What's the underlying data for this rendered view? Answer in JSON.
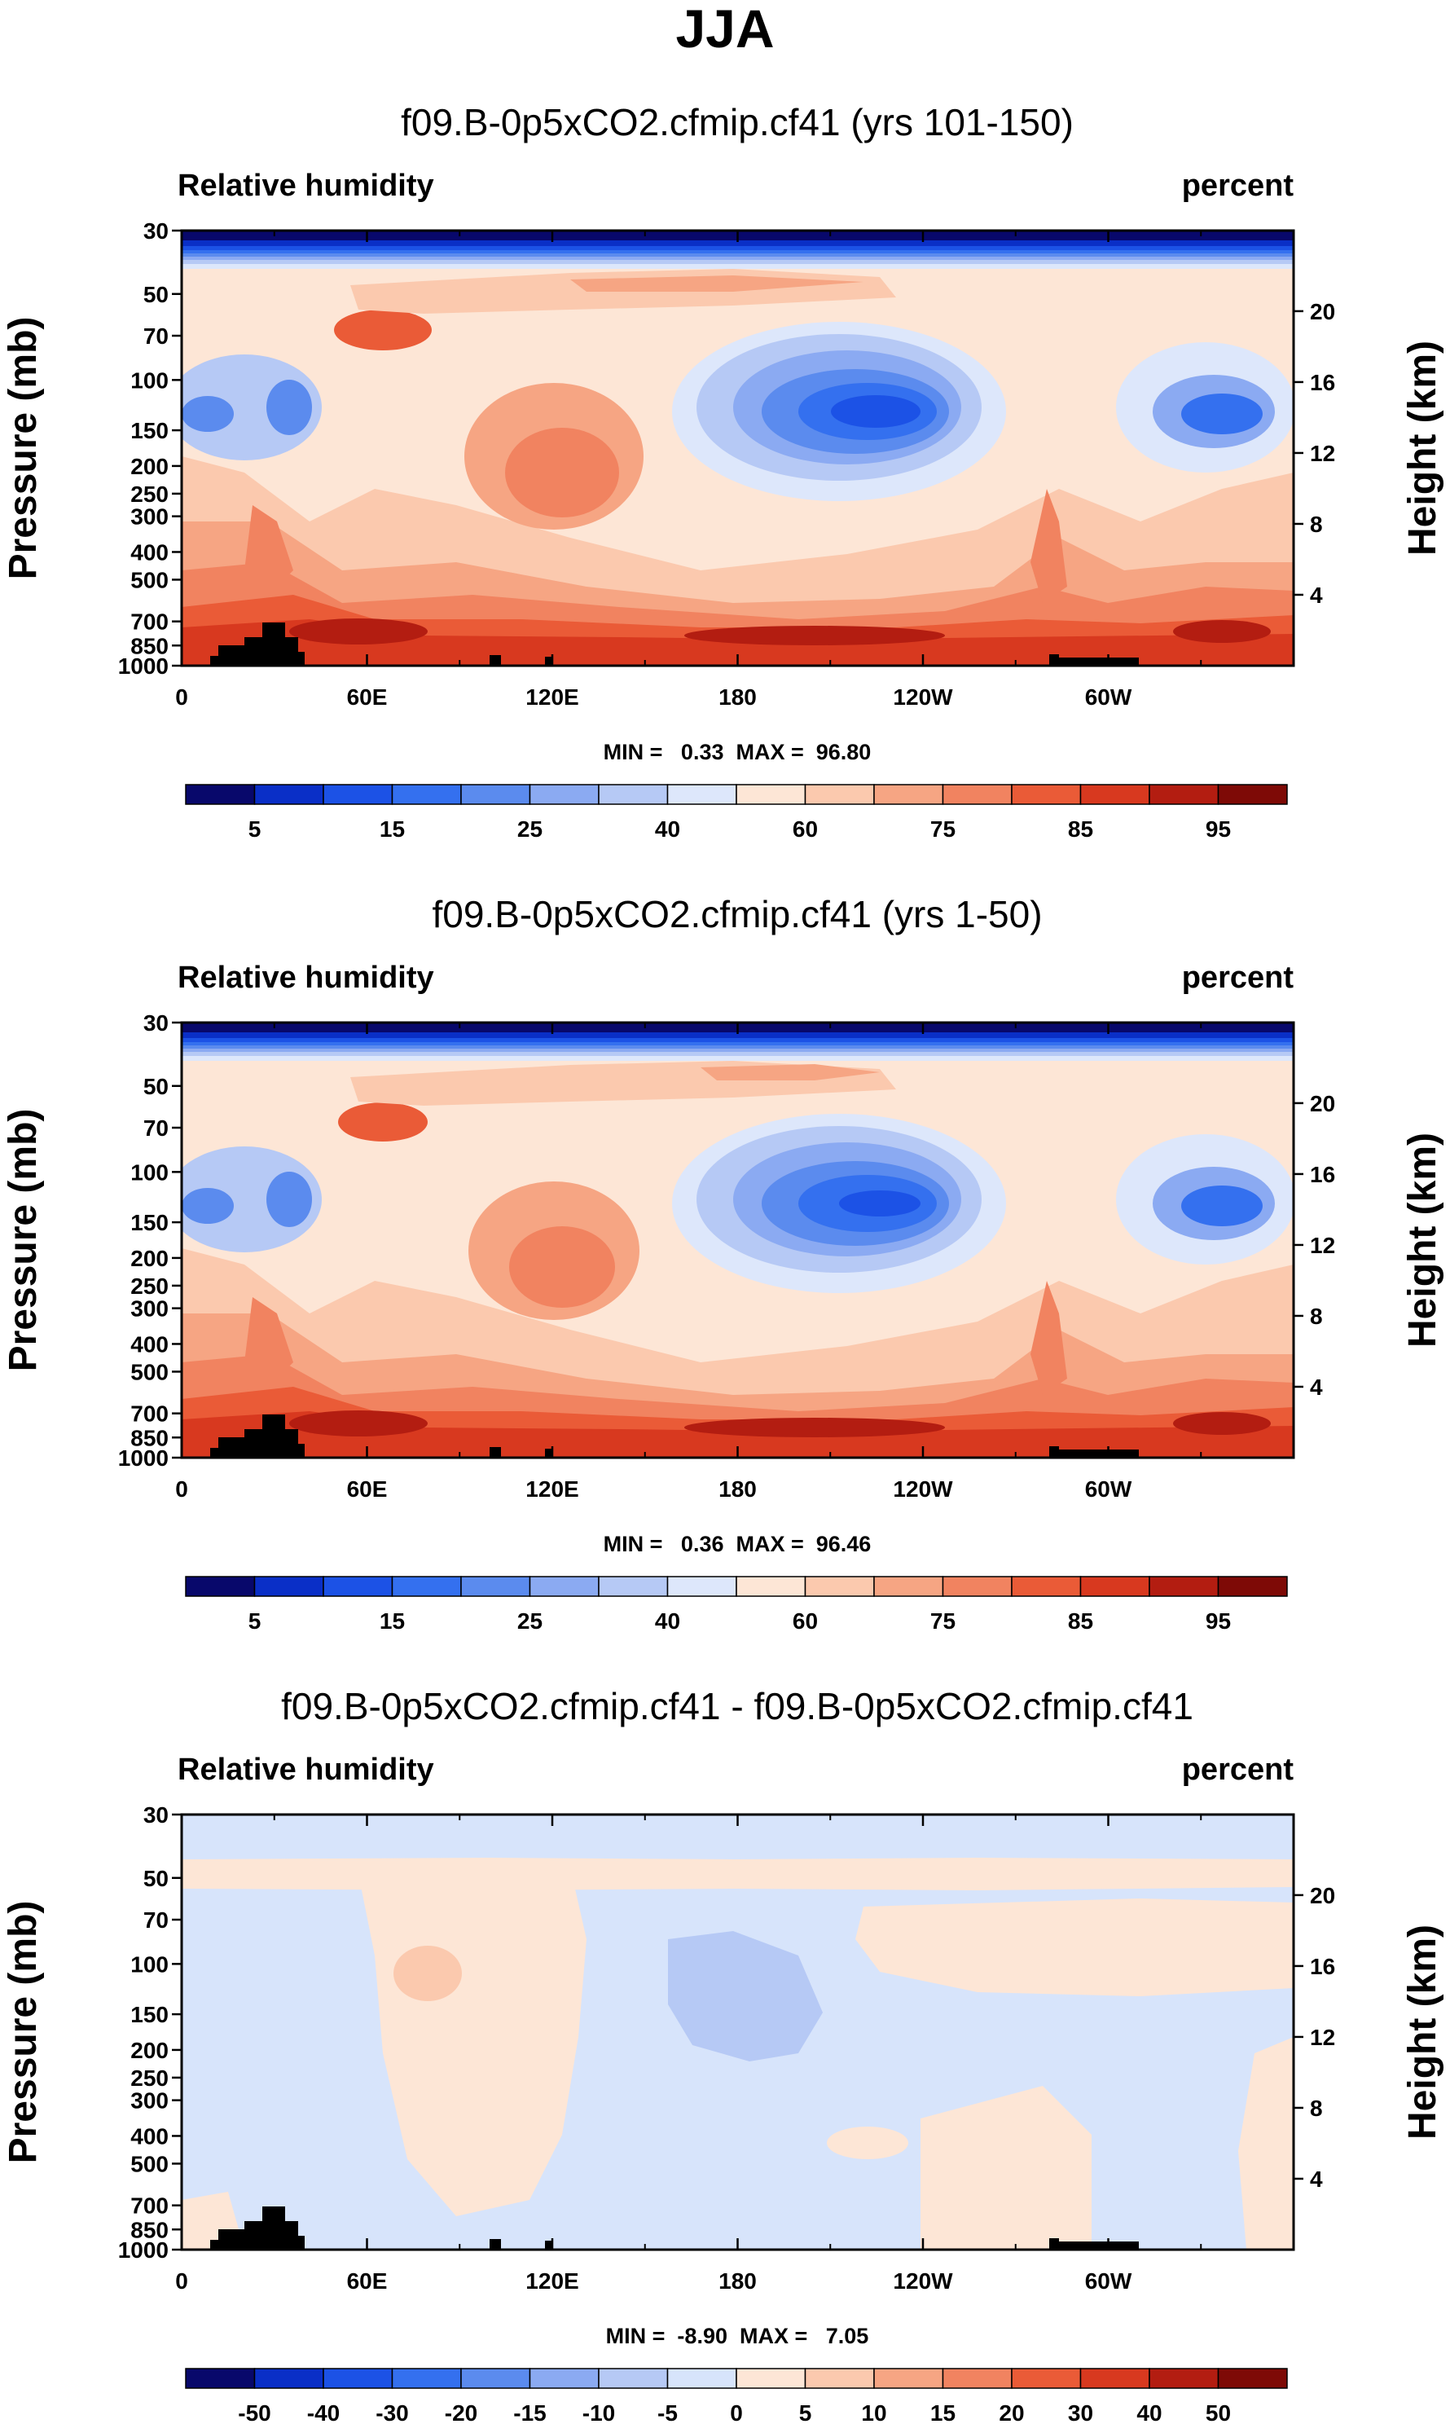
{
  "figure": {
    "title": "JJA"
  },
  "palettes": {
    "rh": [
      "#08086b",
      "#0a2fc7",
      "#1c52e6",
      "#3470ef",
      "#5b8bee",
      "#8baaf2",
      "#b6c9f5",
      "#dde7fb",
      "#fde6d6",
      "#fbc9ae",
      "#f6a583",
      "#f18360",
      "#ea5b37",
      "#d8391f",
      "#b31d11",
      "#7e0a06"
    ],
    "diff": [
      "#08086b",
      "#0a2fc7",
      "#1c52e6",
      "#3470ef",
      "#5b8bee",
      "#8baaf2",
      "#b6c9f5",
      "#d7e4fb",
      "#fde6d6",
      "#fbc9ae",
      "#f6a583",
      "#f18360",
      "#ea5b37",
      "#d8391f",
      "#b31d11",
      "#7e0a06"
    ],
    "topography": "#000000"
  },
  "chart_data": [
    {
      "type": "heatmap",
      "title": "f09.B-0p5xCO2.cfmip.cf41 (yrs 101-150)",
      "left_label": "Relative humidity",
      "right_label": "percent",
      "ylabel": "Pressure (mb)",
      "ylabel_right": "Height (km)",
      "x_ticks": [
        "0",
        "60E",
        "120E",
        "180",
        "120W",
        "60W"
      ],
      "x_tick_values": [
        0,
        60,
        120,
        180,
        240,
        300
      ],
      "xlim": [
        0,
        360
      ],
      "y_ticks": [
        "30",
        "50",
        "70",
        "100",
        "150",
        "200",
        "250",
        "300",
        "400",
        "500",
        "700",
        "850",
        "1000"
      ],
      "y_tick_values": [
        30,
        50,
        70,
        100,
        150,
        200,
        250,
        300,
        400,
        500,
        700,
        850,
        1000
      ],
      "ylim": [
        30,
        1000
      ],
      "height_ticks": [
        "20",
        "16",
        "12",
        "8",
        "4"
      ],
      "height_tick_values": [
        20,
        16,
        12,
        8,
        4
      ],
      "min_max_text": "MIN =   0.33  MAX =  96.80",
      "min": 0.33,
      "max": 96.8,
      "colorbar_labels": [
        "5",
        "15",
        "25",
        "40",
        "60",
        "75",
        "85",
        "95"
      ],
      "colorbar_levels": [
        3,
        5,
        10,
        15,
        20,
        25,
        30,
        40,
        50,
        60,
        70,
        75,
        80,
        85,
        90,
        95
      ],
      "palette": "rh"
    },
    {
      "type": "heatmap",
      "title": "f09.B-0p5xCO2.cfmip.cf41 (yrs 1-50)",
      "left_label": "Relative humidity",
      "right_label": "percent",
      "ylabel": "Pressure (mb)",
      "ylabel_right": "Height (km)",
      "x_ticks": [
        "0",
        "60E",
        "120E",
        "180",
        "120W",
        "60W"
      ],
      "x_tick_values": [
        0,
        60,
        120,
        180,
        240,
        300
      ],
      "xlim": [
        0,
        360
      ],
      "y_ticks": [
        "30",
        "50",
        "70",
        "100",
        "150",
        "200",
        "250",
        "300",
        "400",
        "500",
        "700",
        "850",
        "1000"
      ],
      "y_tick_values": [
        30,
        50,
        70,
        100,
        150,
        200,
        250,
        300,
        400,
        500,
        700,
        850,
        1000
      ],
      "ylim": [
        30,
        1000
      ],
      "height_ticks": [
        "20",
        "16",
        "12",
        "8",
        "4"
      ],
      "height_tick_values": [
        20,
        16,
        12,
        8,
        4
      ],
      "min_max_text": "MIN =   0.36  MAX =  96.46",
      "min": 0.36,
      "max": 96.46,
      "colorbar_labels": [
        "5",
        "15",
        "25",
        "40",
        "60",
        "75",
        "85",
        "95"
      ],
      "colorbar_levels": [
        3,
        5,
        10,
        15,
        20,
        25,
        30,
        40,
        50,
        60,
        70,
        75,
        80,
        85,
        90,
        95
      ],
      "palette": "rh"
    },
    {
      "type": "heatmap",
      "title": "f09.B-0p5xCO2.cfmip.cf41 - f09.B-0p5xCO2.cfmip.cf41",
      "left_label": "Relative humidity",
      "right_label": "percent",
      "ylabel": "Pressure (mb)",
      "ylabel_right": "Height (km)",
      "x_ticks": [
        "0",
        "60E",
        "120E",
        "180",
        "120W",
        "60W"
      ],
      "x_tick_values": [
        0,
        60,
        120,
        180,
        240,
        300
      ],
      "xlim": [
        0,
        360
      ],
      "y_ticks": [
        "30",
        "50",
        "70",
        "100",
        "150",
        "200",
        "250",
        "300",
        "400",
        "500",
        "700",
        "850",
        "1000"
      ],
      "y_tick_values": [
        30,
        50,
        70,
        100,
        150,
        200,
        250,
        300,
        400,
        500,
        700,
        850,
        1000
      ],
      "ylim": [
        30,
        1000
      ],
      "height_ticks": [
        "20",
        "16",
        "12",
        "8",
        "4"
      ],
      "height_tick_values": [
        20,
        16,
        12,
        8,
        4
      ],
      "min_max_text": "MIN =  -8.90  MAX =   7.05",
      "min": -8.9,
      "max": 7.05,
      "colorbar_labels": [
        "-50",
        "-40",
        "-30",
        "-20",
        "-15",
        "-10",
        "-5",
        "0",
        "5",
        "10",
        "15",
        "20",
        "30",
        "40",
        "50"
      ],
      "colorbar_levels": [
        -50,
        -40,
        -30,
        -20,
        -15,
        -10,
        -5,
        0,
        5,
        10,
        15,
        20,
        30,
        40,
        50
      ],
      "palette": "diff"
    }
  ]
}
